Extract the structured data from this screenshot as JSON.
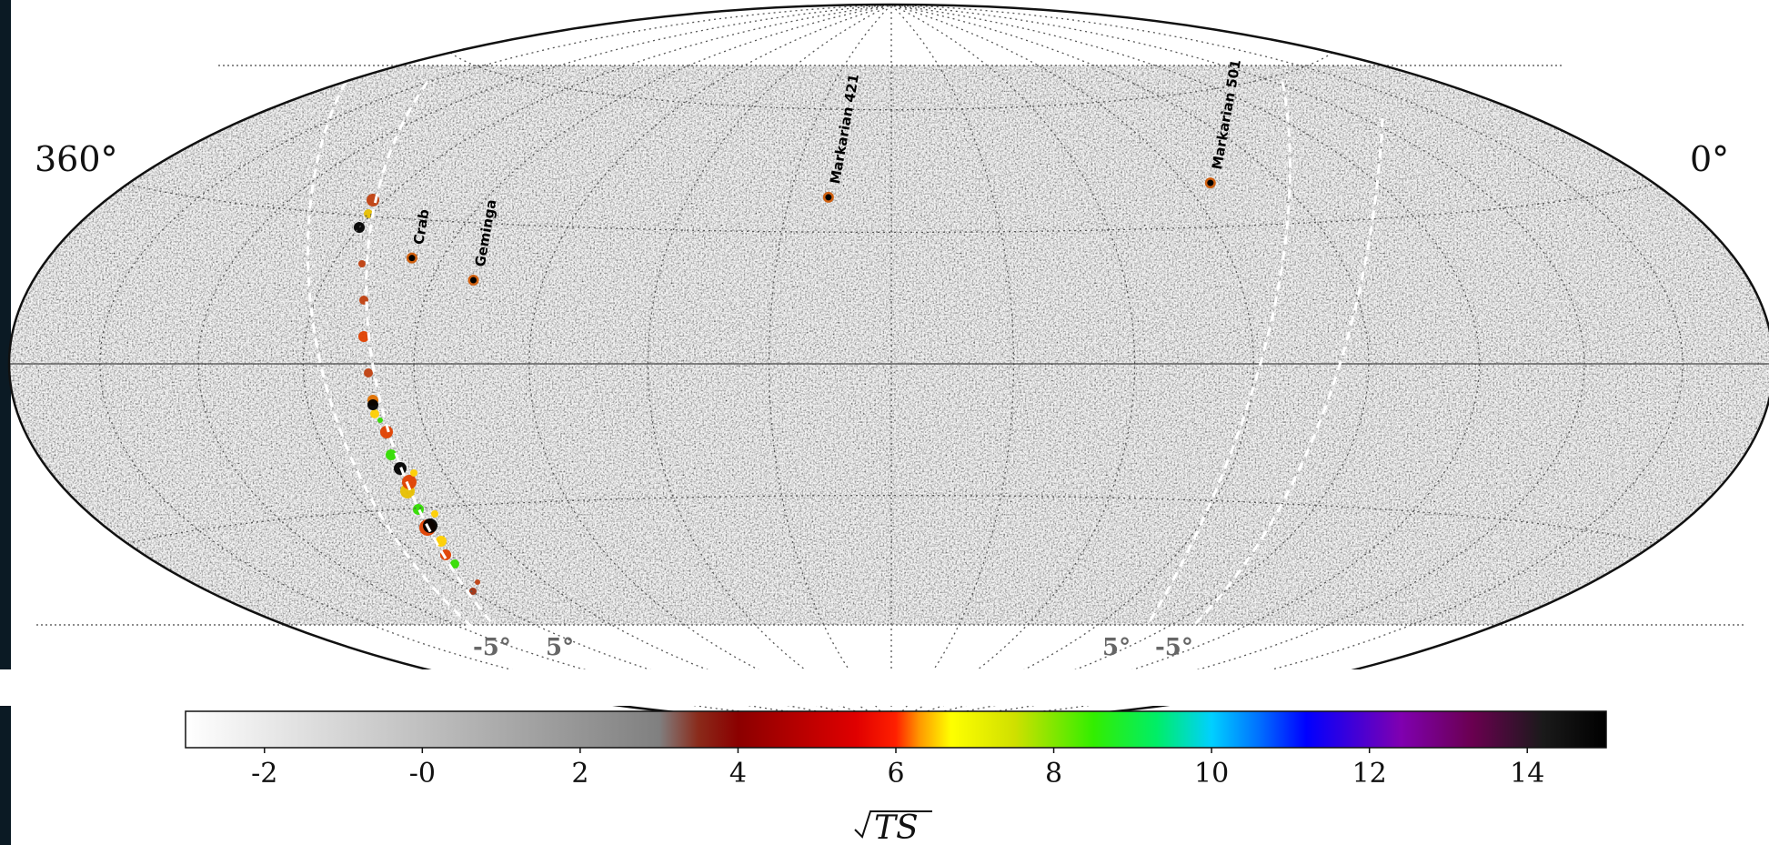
{
  "map": {
    "projection": "hammer-aitoff",
    "longitude_left_label": "360°",
    "longitude_right_label": "0°",
    "band_labels": {
      "left_minus": "-5°",
      "left_plus": "5°",
      "right_plus": "5°",
      "right_minus": "-5°"
    },
    "sources": [
      {
        "name": "Markarian 501",
        "ra": 253.5,
        "dec": 39.8
      },
      {
        "name": "Markarian 421",
        "ra": 166.1,
        "dec": 38.2
      },
      {
        "name": "Geminga",
        "ra": 98.5,
        "dec": 17.8
      },
      {
        "name": "Crab",
        "ra": 83.6,
        "dec": 22.0
      }
    ],
    "background_color": "#bdbdbd",
    "galactic_plane_color": "#ffffff"
  },
  "colorbar": {
    "title": "√TS",
    "range": [
      -3,
      15
    ],
    "ticks": [
      "-2",
      "-0",
      "2",
      "4",
      "6",
      "8",
      "10",
      "12",
      "14"
    ],
    "tick_values": [
      -2,
      0,
      2,
      4,
      6,
      8,
      10,
      12,
      14
    ],
    "stops": [
      {
        "v": -3,
        "c": "#ffffff"
      },
      {
        "v": 3,
        "c": "#808080"
      },
      {
        "v": 3.5,
        "c": "#8a2a1a"
      },
      {
        "v": 4,
        "c": "#8b0000"
      },
      {
        "v": 5.5,
        "c": "#e00000"
      },
      {
        "v": 6,
        "c": "#ff2000"
      },
      {
        "v": 6.3,
        "c": "#ff9900"
      },
      {
        "v": 6.7,
        "c": "#ffff00"
      },
      {
        "v": 7.5,
        "c": "#d0e000"
      },
      {
        "v": 8.5,
        "c": "#33ee00"
      },
      {
        "v": 9.3,
        "c": "#00ee66"
      },
      {
        "v": 10,
        "c": "#00d0ff"
      },
      {
        "v": 10.6,
        "c": "#0070ff"
      },
      {
        "v": 11.2,
        "c": "#0000ff"
      },
      {
        "v": 12.4,
        "c": "#8000b0"
      },
      {
        "v": 13.3,
        "c": "#6a0050"
      },
      {
        "v": 14.2,
        "c": "#1a1a1a"
      },
      {
        "v": 15,
        "c": "#000000"
      }
    ]
  }
}
